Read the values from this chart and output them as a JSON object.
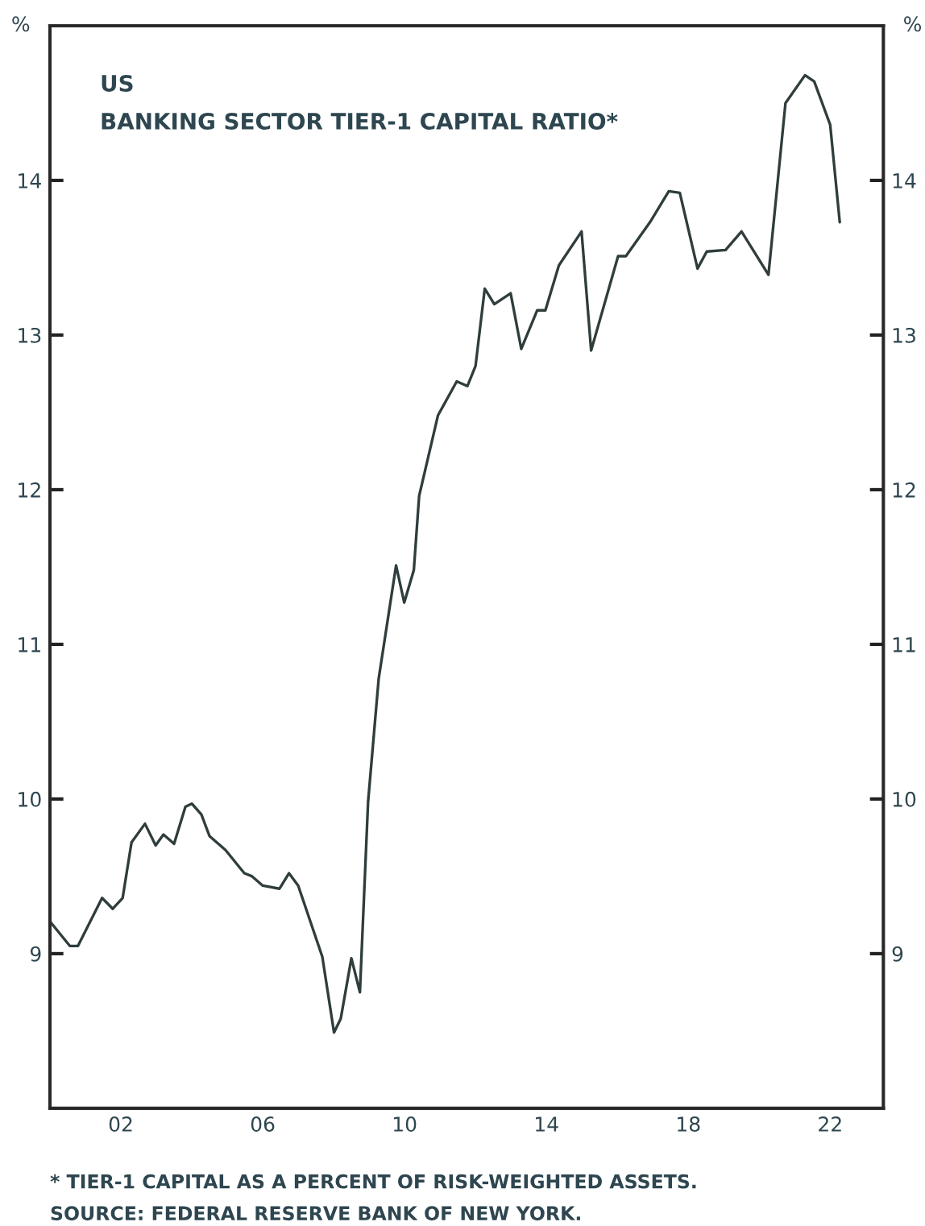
{
  "chart_data": {
    "type": "line",
    "title": "US",
    "subtitle": "BANKING SECTOR TIER-1 CAPITAL RATIO*",
    "ylabel": "%",
    "y2label": "%",
    "x": [
      2000.03,
      2000.56,
      2000.79,
      2001.47,
      2001.77,
      2002.05,
      2002.3,
      2002.68,
      2002.98,
      2003.2,
      2003.5,
      2003.82,
      2004.0,
      2004.27,
      2004.5,
      2004.95,
      2005.48,
      2005.7,
      2006.0,
      2006.47,
      2006.74,
      2007.0,
      2007.68,
      2008.01,
      2008.2,
      2008.5,
      2008.74,
      2008.97,
      2009.27,
      2009.76,
      2009.99,
      2010.26,
      2010.41,
      2010.94,
      2011.47,
      2011.77,
      2012.0,
      2012.26,
      2012.53,
      2012.99,
      2013.29,
      2013.74,
      2013.97,
      2014.35,
      2014.99,
      2015.26,
      2016.02,
      2016.24,
      2016.92,
      2017.45,
      2017.76,
      2018.26,
      2018.52,
      2019.05,
      2019.5,
      2020.26,
      2020.74,
      2021.29,
      2021.55,
      2022.0,
      2022.27
    ],
    "series": [
      {
        "color": "#2f3d3d",
        "values": [
          9.2,
          9.05,
          9.05,
          9.36,
          9.29,
          9.36,
          9.72,
          9.84,
          9.7,
          9.77,
          9.71,
          9.95,
          9.97,
          9.9,
          9.76,
          9.67,
          9.52,
          9.5,
          9.44,
          9.42,
          9.52,
          9.44,
          8.98,
          8.49,
          8.58,
          8.97,
          8.75,
          9.98,
          10.78,
          11.51,
          11.27,
          11.48,
          11.96,
          12.48,
          12.7,
          12.67,
          12.8,
          13.3,
          13.2,
          13.27,
          12.91,
          13.16,
          13.16,
          13.45,
          13.67,
          12.9,
          13.51,
          13.51,
          13.73,
          13.93,
          13.92,
          13.43,
          13.54,
          13.55,
          13.67,
          13.39,
          14.5,
          14.68,
          14.64,
          14.36,
          13.73
        ]
      }
    ],
    "xlim": [
      2000,
      2023.5
    ],
    "xticks": [
      {
        "value": 2002,
        "label": "02"
      },
      {
        "value": 2006,
        "label": "06"
      },
      {
        "value": 2010,
        "label": "10"
      },
      {
        "value": 2014,
        "label": "14"
      },
      {
        "value": 2018,
        "label": "18"
      },
      {
        "value": 2022,
        "label": "22"
      }
    ],
    "ylim": [
      8,
      15
    ],
    "yticks": [
      9,
      10,
      11,
      12,
      13,
      14
    ],
    "y2lim": [
      8,
      15
    ],
    "y2ticks": [
      9,
      10,
      11,
      12,
      13,
      14
    ],
    "grid": false,
    "legend": false,
    "line_style": "solid",
    "marker": "none",
    "annotations": [
      "* TIER-1 CAPITAL AS A PERCENT OF RISK-WEIGHTED ASSETS.",
      "SOURCE: FEDERAL RESERVE BANK OF NEW YORK."
    ]
  }
}
